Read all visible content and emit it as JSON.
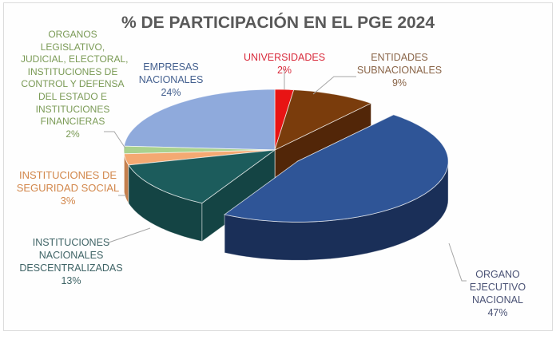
{
  "chart_data": {
    "type": "pie",
    "title": "% DE PARTICIPACIÓN EN EL PGE 2024",
    "slices": [
      {
        "name": "UNIVERSIDADES",
        "value": 2,
        "label": "2%",
        "color": "#e81414",
        "side_color": "#9c0d0d",
        "label_color": "#d92b3c",
        "exploded": false
      },
      {
        "name": "ENTIDADES SUBNACIONALES",
        "name_lines": [
          "ENTIDADES",
          "SUBNACIONALES"
        ],
        "value": 9,
        "label": "9%",
        "color": "#7a3c0c",
        "side_color": "#522608",
        "label_color": "#8a6548",
        "exploded": false
      },
      {
        "name": "ORGANO EJECUTIVO NACIONAL",
        "name_lines": [
          "ORGANO",
          "EJECUTIVO",
          "NACIONAL"
        ],
        "value": 47,
        "label": "47%",
        "color": "#2f5597",
        "side_color": "#1a2f58",
        "label_color": "#4a5275",
        "exploded": true
      },
      {
        "name": "INSTITUCIONES NACIONALES DESCENTRALIZADAS",
        "name_lines": [
          "INSTITUCIONES",
          "NACIONALES",
          "DESCENTRALIZADAS"
        ],
        "value": 13,
        "label": "13%",
        "color": "#1c5c5c",
        "side_color": "#144444",
        "label_color": "#3f6466",
        "exploded": false
      },
      {
        "name": "INSTITUCIONES DE SEGURIDAD SOCIAL",
        "name_lines": [
          "INSTITUCIONES DE",
          "SEGURIDAD SOCIAL"
        ],
        "value": 3,
        "label": "3%",
        "color": "#f4a972",
        "side_color": "#c47f4d",
        "label_color": "#d2874b",
        "exploded": false
      },
      {
        "name": "ORGANOS LEGISLATIVO, JUDICIAL, ELECTORAL, INSTITUCIONES DE CONTROL Y DEFENSA DEL ESTADO E INSTITUCIONES FINANCIERAS",
        "name_lines": [
          "ORGANOS",
          "LEGISLATIVO,",
          "JUDICIAL, ELECTORAL,",
          "INSTITUCIONES DE",
          "CONTROL Y DEFENSA",
          "DEL ESTADO E",
          "INSTITUCIONES",
          "FINANCIERAS"
        ],
        "value": 2,
        "label": "2%",
        "color": "#a9d18e",
        "side_color": "#7aa05f",
        "label_color": "#7a9a55",
        "exploded": false
      },
      {
        "name": "EMPRESAS NACIONALES",
        "name_lines": [
          "EMPRESAS",
          "NACIONALES"
        ],
        "value": 24,
        "label": "24%",
        "color": "#8faadc",
        "side_color": "#6a84b4",
        "label_color": "#44608f",
        "exploded": false
      }
    ],
    "legend": "none",
    "three_d": true
  }
}
